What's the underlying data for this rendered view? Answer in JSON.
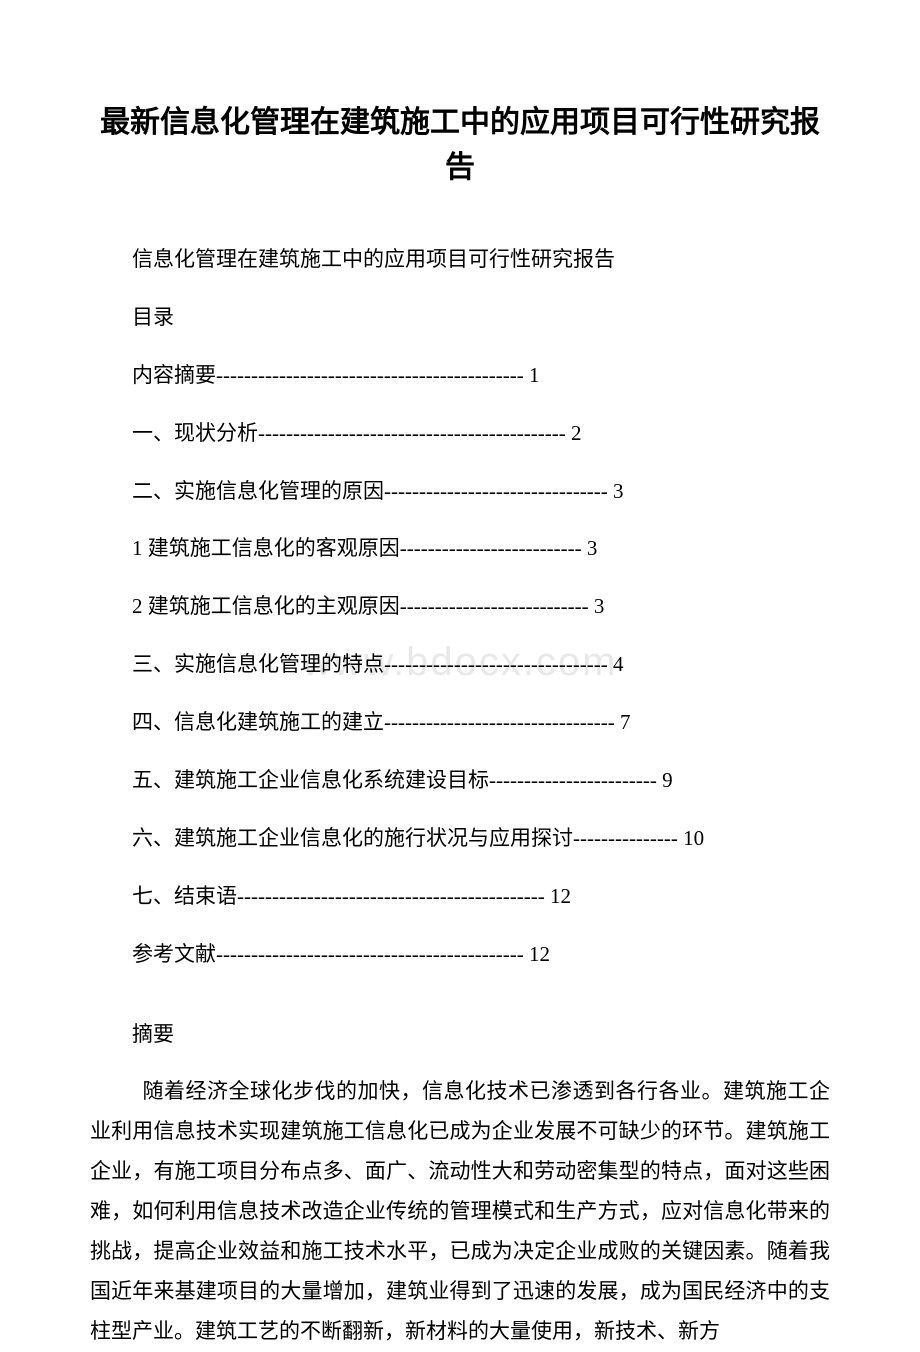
{
  "title": "最新信息化管理在建筑施工中的应用项目可行性研究报告",
  "subtitle": "信息化管理在建筑施工中的应用项目可行性研究报告",
  "toc_heading": "目录",
  "toc": [
    "内容摘要-------------------------------------------- 1",
    "一、现状分析-------------------------------------------- 2",
    "二、实施信息化管理的原因-------------------------------- 3",
    "1 建筑施工信息化的客观原因-------------------------- 3",
    "2 建筑施工信息化的主观原因--------------------------- 3",
    "三、实施信息化管理的特点-------------------------------- 4",
    "四、信息化建筑施工的建立--------------------------------- 7",
    "五、建筑施工企业信息化系统建设目标------------------------ 9",
    "六、建筑施工企业信息化的施行状况与应用探讨--------------- 10",
    "七、结束语-------------------------------------------- 12",
    "参考文献-------------------------------------------- 12"
  ],
  "abstract_heading": "摘要",
  "abstract_body": "随着经济全球化步伐的加快，信息化技术已渗透到各行各业。建筑施工企业利用信息技术实现建筑施工信息化已成为企业发展不可缺少的环节。建筑施工企业，有施工项目分布点多、面广、流动性大和劳动密集型的特点，面对这些困难，如何利用信息技术改造企业传统的管理模式和生产方式，应对信息化带来的挑战，提高企业效益和施工技术水平，已成为决定企业成败的关键因素。随着我国近年来基建项目的大量增加，建筑业得到了迅速的发展，成为国民经济中的支柱型产业。建筑工艺的不断翻新，新材料的大量使用，新技术、新方",
  "watermark": "www.bdocx.com"
}
